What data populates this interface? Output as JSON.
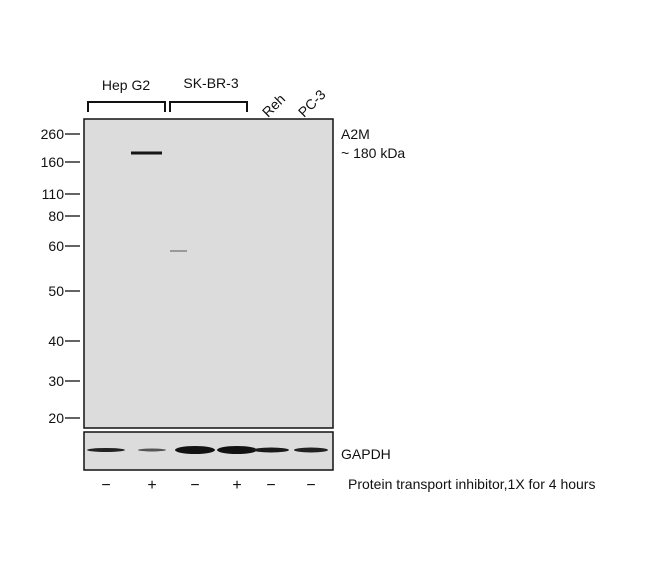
{
  "sample_groups": [
    {
      "label": "Hep G2",
      "bracket": true
    },
    {
      "label": "SK-BR-3",
      "bracket": true
    },
    {
      "label": "Reh",
      "bracket": false,
      "rotated": true
    },
    {
      "label": "PC-3",
      "bracket": false,
      "rotated": true
    }
  ],
  "markers": [
    "260",
    "160",
    "110",
    "80",
    "60",
    "50",
    "40",
    "30",
    "20"
  ],
  "target": {
    "name": "A2M",
    "size": "~ 180 kDa"
  },
  "loading_control": "GAPDH",
  "treatment": {
    "signs": [
      "−",
      "+",
      "−",
      "+",
      "−",
      "−"
    ],
    "label": "Protein transport inhibitor,1X for 4 hours"
  },
  "colors": {
    "membrane": "#dcdcdc",
    "band": "#151515"
  }
}
